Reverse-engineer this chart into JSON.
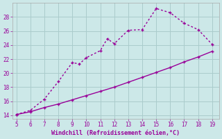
{
  "xlabel": "Windchill (Refroidissement éolien,°C)",
  "x_upper": [
    5,
    6,
    7,
    8,
    9,
    9.5,
    10,
    11,
    11.5,
    12,
    13,
    14,
    15,
    16,
    17,
    18,
    19
  ],
  "y_upper": [
    14.1,
    14.7,
    16.3,
    18.8,
    21.5,
    21.3,
    22.2,
    23.2,
    24.9,
    24.2,
    26.1,
    26.2,
    29.2,
    28.6,
    27.1,
    26.2,
    24.1
  ],
  "x_lower": [
    5,
    6,
    7,
    8,
    9,
    10,
    11,
    12,
    13,
    14,
    15,
    16,
    17,
    18,
    19
  ],
  "y_lower": [
    14.1,
    14.5,
    15.1,
    15.6,
    16.2,
    16.8,
    17.4,
    18.0,
    18.7,
    19.4,
    20.1,
    20.8,
    21.6,
    22.3,
    23.1
  ],
  "line_color": "#990099",
  "bg_color": "#cce8e8",
  "grid_color": "#aacccc",
  "ylim": [
    13.5,
    30
  ],
  "xlim": [
    4.7,
    19.5
  ],
  "yticks": [
    14,
    16,
    18,
    20,
    22,
    24,
    26,
    28
  ],
  "xticks": [
    5,
    6,
    7,
    8,
    9,
    10,
    11,
    12,
    13,
    14,
    15,
    16,
    17,
    18,
    19
  ],
  "marker": "P",
  "marker_size": 3.5,
  "linewidth": 1.0
}
